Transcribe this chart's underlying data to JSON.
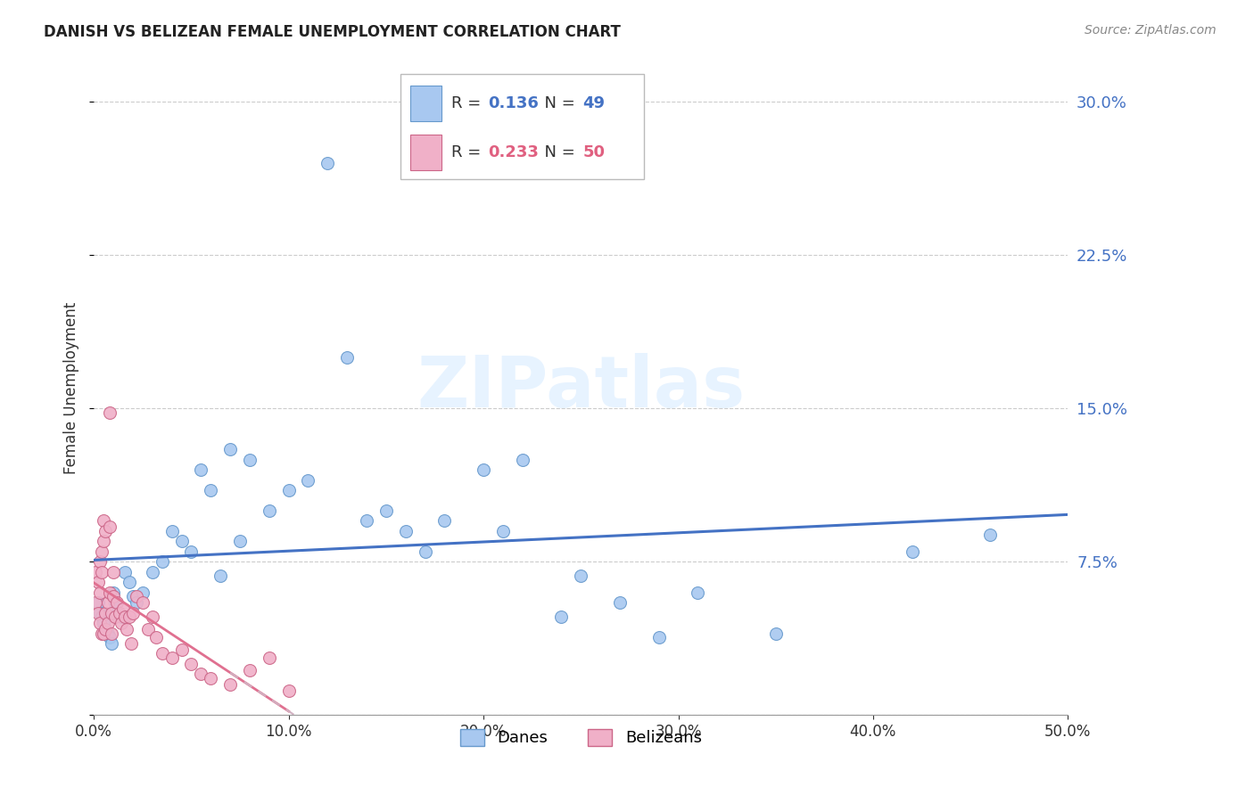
{
  "title": "DANISH VS BELIZEAN FEMALE UNEMPLOYMENT CORRELATION CHART",
  "source": "Source: ZipAtlas.com",
  "ylabel": "Female Unemployment",
  "xlim": [
    0.0,
    0.5
  ],
  "ylim": [
    0.0,
    0.32
  ],
  "yticks": [
    0.075,
    0.15,
    0.225,
    0.3
  ],
  "xticks": [
    0.0,
    0.1,
    0.2,
    0.3,
    0.4,
    0.5
  ],
  "danes_color": "#a8c8f0",
  "danes_edge_color": "#6699cc",
  "belizeans_color": "#f0b0c8",
  "belizeans_edge_color": "#cc6688",
  "danes_R": 0.136,
  "danes_N": 49,
  "belizeans_R": 0.233,
  "belizeans_N": 50,
  "trend_danes_color": "#4472c4",
  "trend_belizeans_solid_color": "#e07090",
  "trend_belizeans_dashed_color": "#d0b0c0",
  "watermark": "ZIPatlas",
  "danes_x": [
    0.002,
    0.003,
    0.004,
    0.005,
    0.006,
    0.007,
    0.008,
    0.009,
    0.01,
    0.011,
    0.012,
    0.014,
    0.016,
    0.018,
    0.02,
    0.022,
    0.025,
    0.03,
    0.035,
    0.04,
    0.045,
    0.05,
    0.055,
    0.06,
    0.065,
    0.07,
    0.075,
    0.08,
    0.09,
    0.1,
    0.11,
    0.12,
    0.13,
    0.14,
    0.15,
    0.16,
    0.17,
    0.18,
    0.2,
    0.21,
    0.22,
    0.24,
    0.25,
    0.27,
    0.29,
    0.31,
    0.35,
    0.42,
    0.46
  ],
  "danes_y": [
    0.055,
    0.05,
    0.048,
    0.045,
    0.042,
    0.04,
    0.038,
    0.035,
    0.06,
    0.055,
    0.05,
    0.048,
    0.07,
    0.065,
    0.058,
    0.055,
    0.06,
    0.07,
    0.075,
    0.09,
    0.085,
    0.08,
    0.12,
    0.11,
    0.068,
    0.13,
    0.085,
    0.125,
    0.1,
    0.11,
    0.115,
    0.27,
    0.175,
    0.095,
    0.1,
    0.09,
    0.08,
    0.095,
    0.12,
    0.09,
    0.125,
    0.048,
    0.068,
    0.055,
    0.038,
    0.06,
    0.04,
    0.08,
    0.088
  ],
  "belizeans_x": [
    0.001,
    0.001,
    0.002,
    0.002,
    0.003,
    0.003,
    0.003,
    0.004,
    0.004,
    0.004,
    0.005,
    0.005,
    0.005,
    0.006,
    0.006,
    0.006,
    0.007,
    0.007,
    0.008,
    0.008,
    0.008,
    0.009,
    0.009,
    0.01,
    0.01,
    0.011,
    0.012,
    0.013,
    0.014,
    0.015,
    0.016,
    0.017,
    0.018,
    0.019,
    0.02,
    0.022,
    0.025,
    0.028,
    0.03,
    0.032,
    0.035,
    0.04,
    0.045,
    0.05,
    0.055,
    0.06,
    0.07,
    0.08,
    0.09,
    0.1
  ],
  "belizeans_y": [
    0.055,
    0.07,
    0.05,
    0.065,
    0.06,
    0.075,
    0.045,
    0.08,
    0.07,
    0.04,
    0.085,
    0.095,
    0.04,
    0.09,
    0.05,
    0.042,
    0.055,
    0.045,
    0.092,
    0.06,
    0.148,
    0.05,
    0.04,
    0.058,
    0.07,
    0.048,
    0.055,
    0.05,
    0.045,
    0.052,
    0.048,
    0.042,
    0.048,
    0.035,
    0.05,
    0.058,
    0.055,
    0.042,
    0.048,
    0.038,
    0.03,
    0.028,
    0.032,
    0.025,
    0.02,
    0.018,
    0.015,
    0.022,
    0.028,
    0.012
  ]
}
